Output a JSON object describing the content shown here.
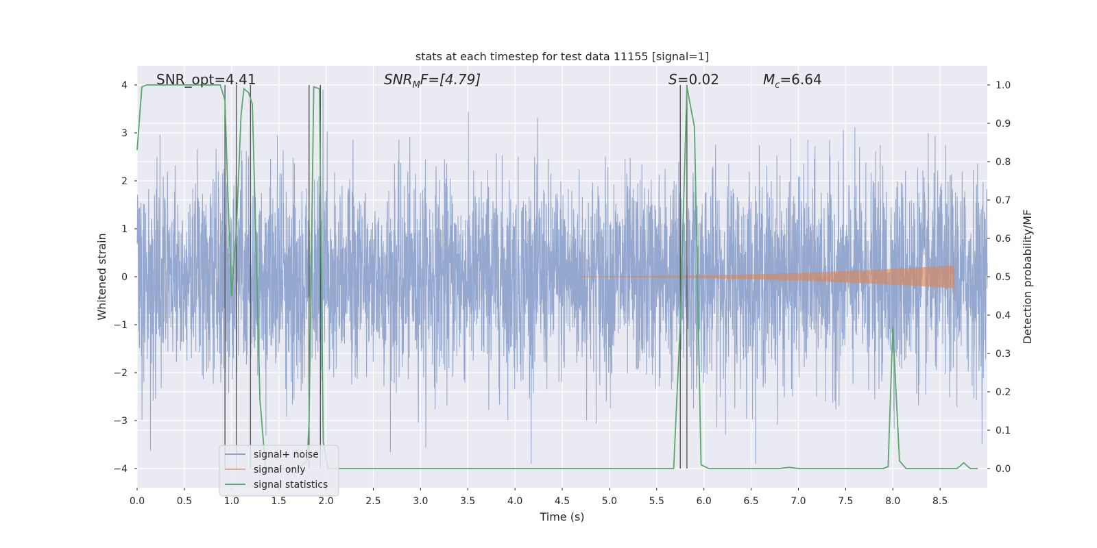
{
  "chart_data": {
    "type": "line",
    "title": "stats at each timestep for test data 11155 [signal=1]",
    "xlabel": "Time (s)",
    "ylabel_left": "Whitened strain",
    "ylabel_right": "Detection probability/MF",
    "xlim": [
      0.0,
      9.0
    ],
    "ylim_left": [
      -4.4,
      4.4
    ],
    "ylim_right": [
      -0.05,
      1.05
    ],
    "x_ticks": [
      0.0,
      0.5,
      1.0,
      1.5,
      2.0,
      2.5,
      3.0,
      3.5,
      4.0,
      4.5,
      5.0,
      5.5,
      6.0,
      6.5,
      7.0,
      7.5,
      8.0,
      8.5
    ],
    "x_tick_labels": [
      "0.0",
      "0.5",
      "1.0",
      "1.5",
      "2.0",
      "2.5",
      "3.0",
      "3.5",
      "4.0",
      "4.5",
      "5.0",
      "5.5",
      "6.0",
      "6.5",
      "7.0",
      "7.5",
      "8.0",
      "8.5"
    ],
    "y_left_ticks": [
      -4,
      -3,
      -2,
      -1,
      0,
      1,
      2,
      3,
      4
    ],
    "y_left_tick_labels": [
      "−4",
      "−3",
      "−2",
      "−1",
      "0",
      "1",
      "2",
      "3",
      "4"
    ],
    "y_right_ticks": [
      0.0,
      0.1,
      0.2,
      0.3,
      0.4,
      0.5,
      0.6,
      0.7,
      0.8,
      0.9,
      1.0
    ],
    "y_right_tick_labels": [
      "0.0",
      "0.1",
      "0.2",
      "0.3",
      "0.4",
      "0.5",
      "0.6",
      "0.7",
      "0.8",
      "0.9",
      "1.0"
    ],
    "grid": true,
    "annotations": {
      "snr_opt": "SNR_opt=4.41",
      "snr_mf_main": "SNR",
      "snr_mf_sub": "M",
      "snr_mf_rest": "F=[4.79]",
      "s_main": "S",
      "s_rest": "=0.02",
      "mc_main": "M",
      "mc_sub": "c",
      "mc_rest": "=6.64"
    },
    "legend": {
      "placement": "lower-left",
      "entries": [
        "signal+ noise",
        "signal only",
        "signal statistics"
      ]
    },
    "colors": {
      "noise": "#8fa3cc",
      "signal": "#dd8452",
      "statistics": "#55a868",
      "vlines": "#555555",
      "background": "#eaeaf2",
      "grid": "#ffffff"
    },
    "series": [
      {
        "name": "signal+ noise",
        "axis": "left",
        "description_values": "whitened strain noise, approx Gaussian with sigma about 1, spanning x 0.0 to 9.0"
      },
      {
        "name": "signal only",
        "axis": "left",
        "chirp_start": 4.7,
        "chirp_end": 8.65,
        "envelope_start": 0.01,
        "envelope_peak_up": 0.65,
        "envelope_peak_down": -0.48
      },
      {
        "name": "signal statistics",
        "axis": "right",
        "x": [
          0.0,
          0.05,
          0.1,
          0.2,
          0.3,
          0.4,
          0.5,
          0.6,
          0.7,
          0.8,
          0.88,
          0.93,
          0.96,
          1.0,
          1.05,
          1.1,
          1.13,
          1.18,
          1.22,
          1.3,
          1.36,
          1.42,
          1.5,
          1.6,
          1.7,
          1.8,
          1.82,
          1.87,
          1.93,
          1.97,
          2.02,
          2.1,
          2.5,
          3.0,
          3.5,
          4.0,
          4.5,
          5.0,
          5.5,
          5.68,
          5.75,
          5.82,
          5.9,
          5.97,
          6.05,
          6.5,
          6.8,
          6.9,
          7.0,
          7.5,
          7.9,
          7.95,
          8.0,
          8.07,
          8.14,
          8.2,
          8.5,
          8.68,
          8.75,
          8.82,
          8.9
        ],
        "y": [
          0.83,
          0.995,
          1.0,
          1.0,
          1.0,
          1.0,
          1.0,
          1.0,
          1.0,
          1.0,
          1.0,
          0.96,
          0.72,
          0.45,
          0.62,
          0.92,
          0.99,
          0.98,
          0.95,
          0.18,
          0.0,
          0.0,
          0.0,
          0.0,
          0.0,
          0.02,
          0.12,
          0.995,
          0.99,
          0.07,
          0.0,
          0.0,
          0.0,
          0.0,
          0.0,
          0.0,
          0.0,
          0.0,
          0.0,
          0.0,
          0.38,
          0.995,
          0.89,
          0.01,
          0.0,
          0.0,
          0.0,
          0.003,
          0.0,
          0.0,
          0.0,
          0.005,
          0.37,
          0.02,
          0.0,
          0.0,
          0.0,
          0.0,
          0.015,
          0.0,
          0.0
        ]
      }
    ],
    "vlines": {
      "x": [
        0.93,
        1.05,
        1.2,
        1.82,
        1.94,
        5.75,
        5.82
      ],
      "y_range_right": [
        0.0,
        1.0
      ]
    }
  }
}
